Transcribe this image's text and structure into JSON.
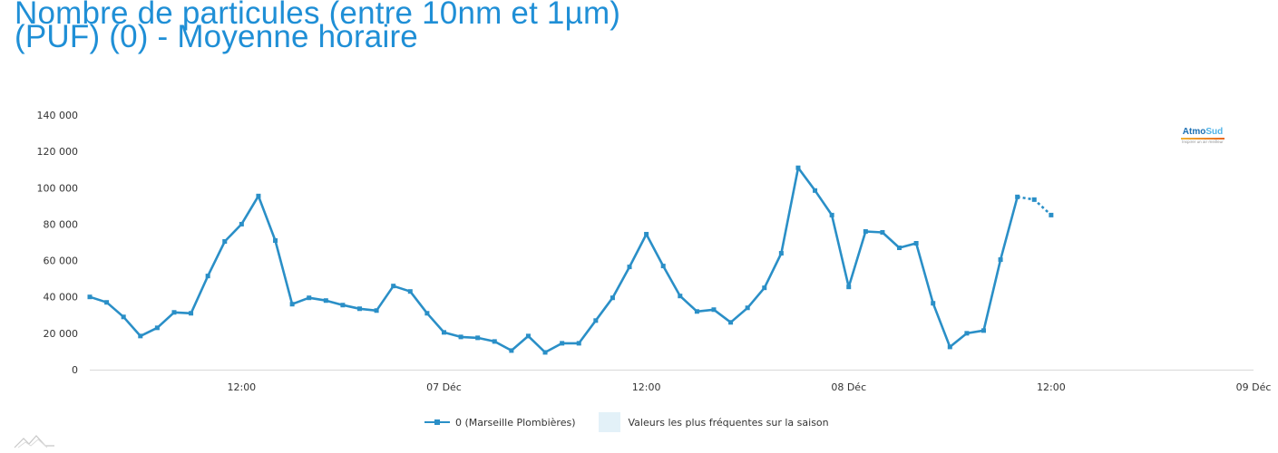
{
  "title_lines": [
    "Nombre de particules (entre 10nm et 1µm)",
    "(PUF) (0) - Moyenne horaire"
  ],
  "logo": {
    "name_part1": "Atmo",
    "name_part2": "Sud",
    "tagline": "Inspirer un air meilleur"
  },
  "colors": {
    "series": "#2a8fc7",
    "title": "#1f8fd6",
    "band": "#e3f1f8"
  },
  "chart_data": {
    "type": "line",
    "title": "Nombre de particules (entre 10nm et 1µm) (PUF) (0) - Moyenne horaire",
    "ylim": [
      0,
      140000
    ],
    "y_ticks": [
      0,
      20000,
      40000,
      60000,
      80000,
      100000,
      120000,
      140000
    ],
    "y_tick_labels": [
      "0",
      "20 000",
      "40 000",
      "60 000",
      "80 000",
      "100 000",
      "120 000",
      "140 000"
    ],
    "x_tick_labels": [
      "12:00",
      "07 Déc",
      "12:00",
      "08 Déc",
      "12:00",
      "09 Déc"
    ],
    "x_start_hour": 3,
    "x_end_hour": 72,
    "x_ticks_hour": [
      12,
      24,
      36,
      48,
      60,
      72
    ],
    "grid": false,
    "legend_position": "bottom",
    "series": [
      {
        "name": "0 (Marseille Plombières)",
        "hours": [
          3,
          4,
          5,
          6,
          7,
          8,
          9,
          10,
          11,
          12,
          13,
          14,
          15,
          16,
          17,
          18,
          19,
          20,
          21,
          22,
          23,
          24,
          25,
          26,
          27,
          28,
          29,
          30,
          31,
          32,
          33,
          34,
          35,
          36,
          37,
          38,
          39,
          40,
          41,
          42,
          43,
          44,
          45,
          46,
          47,
          48,
          49,
          50,
          51,
          52,
          53,
          54,
          55,
          56,
          57,
          58
        ],
        "values": [
          40000,
          37000,
          29000,
          18500,
          23000,
          31500,
          31000,
          51500,
          70500,
          80000,
          95500,
          71000,
          36000,
          39500,
          38000,
          35500,
          33500,
          32500,
          46000,
          43000,
          31000,
          20500,
          18000,
          17500,
          15500,
          10500,
          18500,
          9500,
          14500,
          14500,
          27000,
          39500,
          56500,
          74500,
          57000,
          40500,
          32000,
          33000,
          26000,
          34000,
          45000,
          64000,
          111000,
          98500,
          85000,
          45500,
          76000,
          75500,
          67000,
          69500,
          36500,
          12500,
          20000,
          21500,
          60500,
          95000
        ],
        "continuation": {
          "hours": [
            58,
            59,
            60
          ],
          "values": [
            95000,
            93500,
            85000
          ]
        }
      },
      {
        "name": "Valeurs les plus fréquentes sur la saison"
      }
    ]
  }
}
